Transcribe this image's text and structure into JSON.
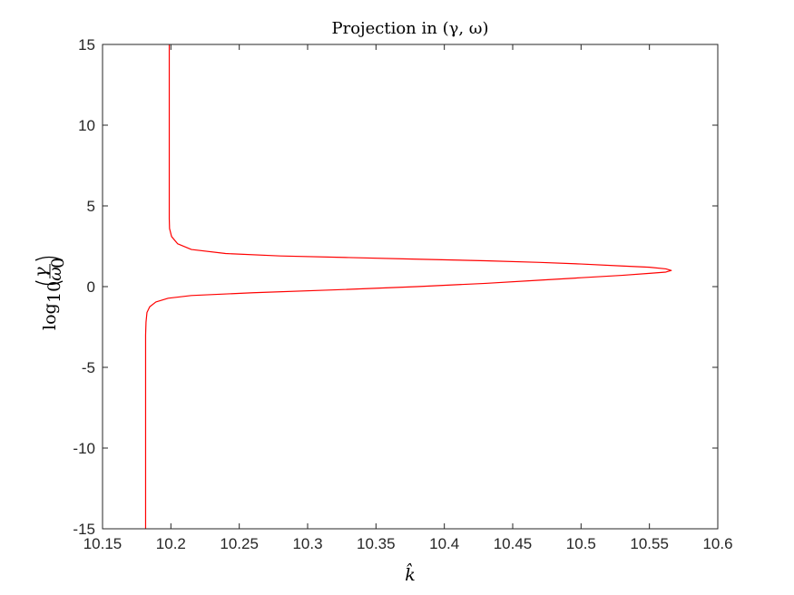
{
  "chart_data": {
    "type": "line",
    "title": "Projection in (γ, ω)",
    "xlabel": "k̂",
    "ylabel": {
      "prefix": "log",
      "subscript": "10",
      "numerator": "γ",
      "denominator": "ω",
      "denominator_subscript": "0"
    },
    "xlim": [
      10.15,
      10.6
    ],
    "ylim": [
      -15,
      15
    ],
    "xticks": [
      "10.15",
      "10.2",
      "10.25",
      "10.3",
      "10.35",
      "10.4",
      "10.45",
      "10.5",
      "10.55",
      "10.6"
    ],
    "yticks": [
      "-15",
      "-10",
      "-5",
      "0",
      "5",
      "10",
      "15"
    ],
    "grid": false,
    "colors": {
      "line": "#ff0000",
      "axes": "#262626"
    },
    "series": [
      {
        "x": [
          10.1815,
          10.1815,
          10.1815,
          10.1815,
          10.1818,
          10.1825,
          10.1845,
          10.189,
          10.198,
          10.215,
          10.26,
          10.32,
          10.38,
          10.43,
          10.47,
          10.5,
          10.53,
          10.55,
          10.562,
          10.566,
          10.562,
          10.55,
          10.53,
          10.5,
          10.47,
          10.43,
          10.38,
          10.33,
          10.28,
          10.24,
          10.215,
          10.205,
          10.2005,
          10.199,
          10.1988,
          10.1988,
          10.1988,
          10.1988
        ],
        "y": [
          -15,
          -10,
          -5,
          -3,
          -2.2,
          -1.6,
          -1.25,
          -0.95,
          -0.72,
          -0.55,
          -0.38,
          -0.2,
          0.0,
          0.2,
          0.4,
          0.55,
          0.7,
          0.82,
          0.9,
          1.0,
          1.1,
          1.2,
          1.28,
          1.4,
          1.5,
          1.6,
          1.7,
          1.8,
          1.9,
          2.05,
          2.3,
          2.65,
          3.1,
          3.6,
          4.2,
          5,
          10,
          15
        ]
      }
    ]
  }
}
